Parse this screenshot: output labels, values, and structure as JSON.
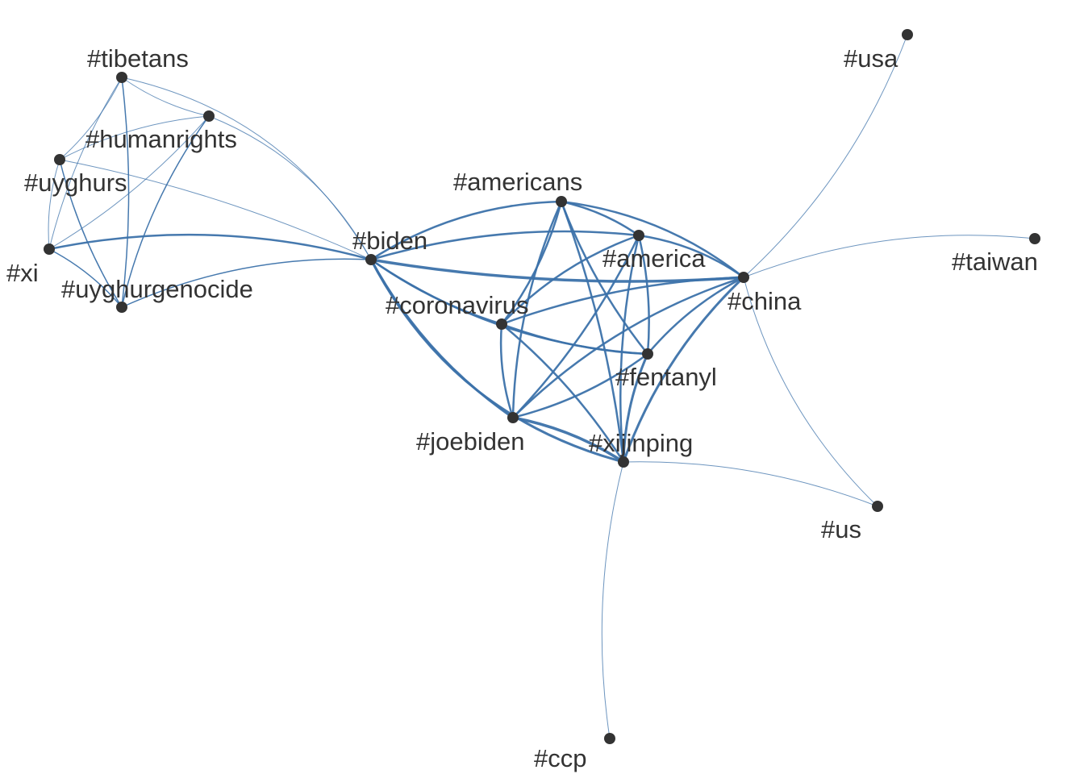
{
  "graph": {
    "edge_color": "#3c72aa",
    "node_color": "#333333",
    "label_color": "#333333",
    "nodes": [
      {
        "id": "tibetans",
        "label": "#tibetans"
      },
      {
        "id": "humanrights",
        "label": "#humanrights"
      },
      {
        "id": "uyghurs",
        "label": "#uyghurs"
      },
      {
        "id": "xi",
        "label": "#xi"
      },
      {
        "id": "uyghurgenocide",
        "label": "#uyghurgenocide"
      },
      {
        "id": "biden",
        "label": "#biden"
      },
      {
        "id": "americans",
        "label": "#americans"
      },
      {
        "id": "america",
        "label": "#america"
      },
      {
        "id": "coronavirus",
        "label": "#coronavirus"
      },
      {
        "id": "china",
        "label": "#china"
      },
      {
        "id": "fentanyl",
        "label": "#fentanyl"
      },
      {
        "id": "joebiden",
        "label": "#joebiden"
      },
      {
        "id": "xijinping",
        "label": "#xijinping"
      },
      {
        "id": "usa",
        "label": "#usa"
      },
      {
        "id": "taiwan",
        "label": "#taiwan"
      },
      {
        "id": "us",
        "label": "#us"
      },
      {
        "id": "ccp",
        "label": "#ccp"
      }
    ],
    "edges": [
      {
        "source": "tibetans",
        "target": "humanrights",
        "weight": 1
      },
      {
        "source": "tibetans",
        "target": "uyghurs",
        "weight": 1
      },
      {
        "source": "tibetans",
        "target": "xi",
        "weight": 1
      },
      {
        "source": "tibetans",
        "target": "uyghurgenocide",
        "weight": 1.5
      },
      {
        "source": "tibetans",
        "target": "biden",
        "weight": 1
      },
      {
        "source": "humanrights",
        "target": "uyghurs",
        "weight": 1
      },
      {
        "source": "humanrights",
        "target": "xi",
        "weight": 1
      },
      {
        "source": "humanrights",
        "target": "uyghurgenocide",
        "weight": 1.5
      },
      {
        "source": "humanrights",
        "target": "biden",
        "weight": 1
      },
      {
        "source": "uyghurs",
        "target": "xi",
        "weight": 1
      },
      {
        "source": "uyghurs",
        "target": "uyghurgenocide",
        "weight": 1.5
      },
      {
        "source": "uyghurs",
        "target": "biden",
        "weight": 1
      },
      {
        "source": "xi",
        "target": "uyghurgenocide",
        "weight": 1.5
      },
      {
        "source": "xi",
        "target": "biden",
        "weight": 2.5
      },
      {
        "source": "uyghurgenocide",
        "target": "biden",
        "weight": 1.5
      },
      {
        "source": "biden",
        "target": "americans",
        "weight": 2.5
      },
      {
        "source": "biden",
        "target": "america",
        "weight": 2.5
      },
      {
        "source": "biden",
        "target": "coronavirus",
        "weight": 2.5
      },
      {
        "source": "biden",
        "target": "china",
        "weight": 3.5
      },
      {
        "source": "biden",
        "target": "fentanyl",
        "weight": 2.5
      },
      {
        "source": "biden",
        "target": "joebiden",
        "weight": 3
      },
      {
        "source": "biden",
        "target": "xijinping",
        "weight": 3
      },
      {
        "source": "americans",
        "target": "america",
        "weight": 2.5
      },
      {
        "source": "americans",
        "target": "coronavirus",
        "weight": 2.5
      },
      {
        "source": "americans",
        "target": "china",
        "weight": 2.5
      },
      {
        "source": "americans",
        "target": "fentanyl",
        "weight": 2.5
      },
      {
        "source": "americans",
        "target": "joebiden",
        "weight": 2.5
      },
      {
        "source": "americans",
        "target": "xijinping",
        "weight": 2.5
      },
      {
        "source": "america",
        "target": "coronavirus",
        "weight": 2.5
      },
      {
        "source": "america",
        "target": "china",
        "weight": 2.5
      },
      {
        "source": "america",
        "target": "fentanyl",
        "weight": 2.5
      },
      {
        "source": "america",
        "target": "joebiden",
        "weight": 2.5
      },
      {
        "source": "america",
        "target": "xijinping",
        "weight": 2.5
      },
      {
        "source": "coronavirus",
        "target": "china",
        "weight": 2.5
      },
      {
        "source": "coronavirus",
        "target": "fentanyl",
        "weight": 2.5
      },
      {
        "source": "coronavirus",
        "target": "joebiden",
        "weight": 2.5
      },
      {
        "source": "coronavirus",
        "target": "xijinping",
        "weight": 2.5
      },
      {
        "source": "china",
        "target": "fentanyl",
        "weight": 2.5
      },
      {
        "source": "china",
        "target": "joebiden",
        "weight": 2.5
      },
      {
        "source": "china",
        "target": "xijinping",
        "weight": 3
      },
      {
        "source": "china",
        "target": "usa",
        "weight": 1
      },
      {
        "source": "china",
        "target": "taiwan",
        "weight": 1
      },
      {
        "source": "china",
        "target": "us",
        "weight": 1
      },
      {
        "source": "fentanyl",
        "target": "joebiden",
        "weight": 2.5
      },
      {
        "source": "fentanyl",
        "target": "xijinping",
        "weight": 3
      },
      {
        "source": "joebiden",
        "target": "xijinping",
        "weight": 3.5
      },
      {
        "source": "xijinping",
        "target": "us",
        "weight": 1
      },
      {
        "source": "xijinping",
        "target": "ccp",
        "weight": 1
      }
    ]
  }
}
